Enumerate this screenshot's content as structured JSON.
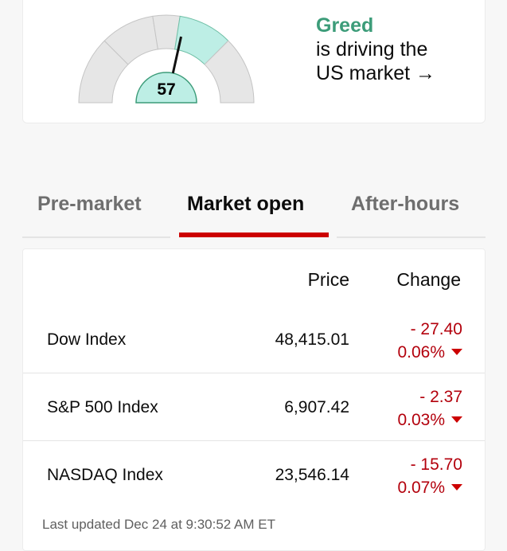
{
  "fear_greed": {
    "value": 57,
    "label": "Greed",
    "line1": "is driving the",
    "line2": "US market",
    "arrow": "→",
    "segments": [
      0,
      25,
      45,
      55,
      75,
      100
    ],
    "highlight_color": "#bdeee5",
    "base_color": "#e6e6e6"
  },
  "tabs": [
    {
      "label": "Pre-market"
    },
    {
      "label": "Market open",
      "active": true
    },
    {
      "label": "After-hours"
    }
  ],
  "table": {
    "headers": {
      "price": "Price",
      "change": "Change"
    },
    "rows": [
      {
        "name": "Dow Index",
        "price": "48,415.01",
        "change": "- 27.40",
        "pct": "0.06%"
      },
      {
        "name": "S&P 500 Index",
        "price": "6,907.42",
        "change": "- 2.37",
        "pct": "0.03%"
      },
      {
        "name": "NASDAQ Index",
        "price": "23,546.14",
        "change": "- 15.70",
        "pct": "0.07%"
      }
    ],
    "updated": "Last updated Dec 24 at 9:30:52 AM ET"
  },
  "colors": {
    "accent": "#cc0000",
    "negative": "#b3000c",
    "greed": "#3c9c79"
  }
}
